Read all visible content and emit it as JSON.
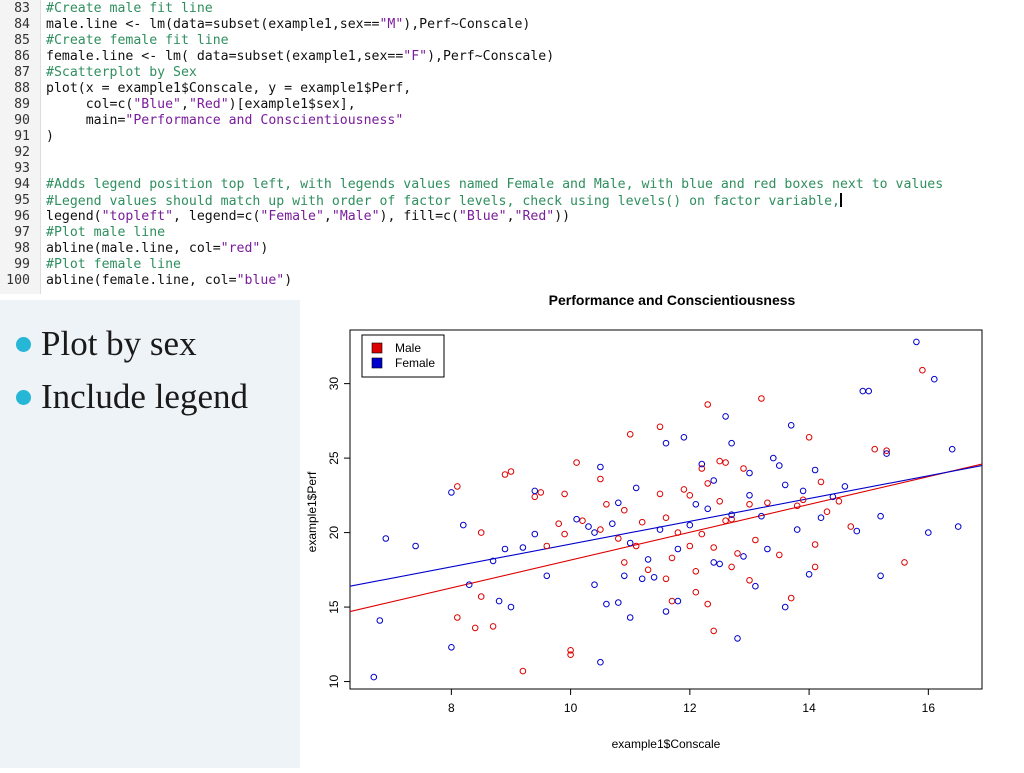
{
  "code": {
    "lines": [
      {
        "no": "83",
        "text": "#Create male fit line",
        "comment": true
      },
      {
        "no": "84",
        "text": "male.line <- lm(data=subset(example1,sex==\"M\"),Perf~Conscale)",
        "comment": false
      },
      {
        "no": "85",
        "text": "#Create female fit line",
        "comment": true
      },
      {
        "no": "86",
        "text": "female.line <- lm( data=subset(example1,sex==\"F\"),Perf~Conscale)",
        "comment": false
      },
      {
        "no": "87",
        "text": "#Scatterplot by Sex",
        "comment": true
      },
      {
        "no": "88",
        "text": "plot(x = example1$Conscale, y = example1$Perf,",
        "comment": false
      },
      {
        "no": "89",
        "text": "     col=c(\"Blue\",\"Red\")[example1$sex],",
        "comment": false
      },
      {
        "no": "90",
        "text": "     main=\"Performance and Conscientiousness\"",
        "comment": false
      },
      {
        "no": "91",
        "text": ")",
        "comment": false
      },
      {
        "no": "92",
        "text": "",
        "comment": false
      },
      {
        "no": "93",
        "text": "",
        "comment": false
      },
      {
        "no": "94",
        "text": "#Adds legend position top left, with legends values named Female and Male, with blue and red boxes next to values",
        "comment": true
      },
      {
        "no": "95",
        "text": "#Legend values should match up with order of factor levels, check using levels() on factor variable,",
        "comment": true,
        "cursor": true
      },
      {
        "no": "96",
        "text": "legend(\"topleft\", legend=c(\"Female\",\"Male\"), fill=c(\"Blue\",\"Red\"))",
        "comment": false
      },
      {
        "no": "97",
        "text": "#Plot male line",
        "comment": true
      },
      {
        "no": "98",
        "text": "abline(male.line, col=\"red\")",
        "comment": false
      },
      {
        "no": "99",
        "text": "#Plot female line",
        "comment": true
      },
      {
        "no": "100",
        "text": "abline(female.line, col=\"blue\")",
        "comment": false
      }
    ]
  },
  "bullets": [
    {
      "label": "Plot by sex"
    },
    {
      "label": "Include legend"
    }
  ],
  "chart_data": {
    "type": "scatter",
    "title": "Performance and Conscientiousness",
    "xlabel": "example1$Conscale",
    "ylabel": "example1$Perf",
    "xlim": [
      6.3,
      16.9
    ],
    "ylim": [
      9.5,
      33.6
    ],
    "xticks": [
      8,
      10,
      12,
      14,
      16
    ],
    "yticks": [
      10,
      15,
      20,
      25,
      30
    ],
    "grid": false,
    "legend": {
      "position": "top-left",
      "entries": [
        {
          "name": "Male",
          "color": "#dd0000"
        },
        {
          "name": "Female",
          "color": "#0000cc"
        }
      ]
    },
    "series": [
      {
        "name": "Male",
        "color": "#dd0000",
        "fit_line": {
          "x": [
            6.3,
            16.9
          ],
          "y": [
            14.7,
            24.6
          ]
        },
        "points": [
          [
            8.1,
            23.1
          ],
          [
            8.1,
            14.3
          ],
          [
            8.4,
            13.6
          ],
          [
            8.5,
            20.0
          ],
          [
            8.5,
            15.7
          ],
          [
            8.7,
            13.7
          ],
          [
            8.9,
            23.9
          ],
          [
            9.0,
            24.1
          ],
          [
            9.2,
            10.7
          ],
          [
            9.4,
            22.4
          ],
          [
            9.5,
            22.7
          ],
          [
            9.6,
            19.1
          ],
          [
            9.8,
            20.6
          ],
          [
            9.9,
            19.9
          ],
          [
            9.9,
            22.6
          ],
          [
            10.0,
            12.1
          ],
          [
            10.0,
            11.8
          ],
          [
            10.1,
            24.7
          ],
          [
            10.2,
            20.8
          ],
          [
            10.5,
            20.2
          ],
          [
            10.5,
            23.6
          ],
          [
            10.6,
            21.9
          ],
          [
            10.8,
            19.6
          ],
          [
            10.9,
            18.0
          ],
          [
            10.9,
            21.5
          ],
          [
            11.0,
            26.6
          ],
          [
            11.1,
            19.1
          ],
          [
            11.2,
            20.7
          ],
          [
            11.3,
            17.5
          ],
          [
            11.5,
            27.1
          ],
          [
            11.5,
            22.6
          ],
          [
            11.6,
            21.0
          ],
          [
            11.6,
            16.9
          ],
          [
            11.7,
            15.4
          ],
          [
            11.7,
            18.3
          ],
          [
            11.8,
            20.0
          ],
          [
            11.9,
            22.9
          ],
          [
            12.0,
            22.5
          ],
          [
            12.0,
            19.1
          ],
          [
            12.1,
            17.4
          ],
          [
            12.1,
            16.0
          ],
          [
            12.2,
            24.3
          ],
          [
            12.2,
            19.9
          ],
          [
            12.3,
            28.6
          ],
          [
            12.3,
            23.3
          ],
          [
            12.3,
            15.2
          ],
          [
            12.4,
            19.0
          ],
          [
            12.4,
            13.4
          ],
          [
            12.5,
            22.1
          ],
          [
            12.5,
            24.8
          ],
          [
            12.6,
            24.7
          ],
          [
            12.6,
            20.8
          ],
          [
            12.7,
            17.7
          ],
          [
            12.7,
            20.9
          ],
          [
            12.8,
            18.6
          ],
          [
            12.9,
            24.3
          ],
          [
            13.0,
            21.9
          ],
          [
            13.0,
            16.8
          ],
          [
            13.1,
            19.5
          ],
          [
            13.2,
            29.0
          ],
          [
            13.3,
            22.0
          ],
          [
            13.5,
            18.5
          ],
          [
            13.7,
            15.6
          ],
          [
            13.8,
            21.8
          ],
          [
            13.9,
            22.2
          ],
          [
            14.0,
            26.4
          ],
          [
            14.1,
            19.2
          ],
          [
            14.1,
            17.7
          ],
          [
            14.2,
            23.4
          ],
          [
            14.3,
            21.4
          ],
          [
            14.5,
            22.1
          ],
          [
            14.7,
            20.4
          ],
          [
            15.1,
            25.6
          ],
          [
            15.3,
            25.5
          ],
          [
            15.6,
            18.0
          ],
          [
            15.9,
            30.9
          ]
        ]
      },
      {
        "name": "Female",
        "color": "#0000cc",
        "fit_line": {
          "x": [
            6.3,
            16.9
          ],
          "y": [
            16.4,
            24.5
          ]
        },
        "points": [
          [
            6.7,
            10.3
          ],
          [
            6.8,
            14.1
          ],
          [
            6.9,
            19.6
          ],
          [
            7.4,
            19.1
          ],
          [
            8.0,
            12.3
          ],
          [
            8.0,
            22.7
          ],
          [
            8.2,
            20.5
          ],
          [
            8.3,
            16.5
          ],
          [
            8.7,
            18.1
          ],
          [
            8.8,
            15.4
          ],
          [
            8.9,
            18.9
          ],
          [
            9.0,
            15.0
          ],
          [
            9.2,
            19.0
          ],
          [
            9.4,
            22.8
          ],
          [
            9.4,
            19.9
          ],
          [
            9.6,
            17.1
          ],
          [
            10.1,
            20.9
          ],
          [
            10.3,
            20.4
          ],
          [
            10.4,
            16.5
          ],
          [
            10.4,
            20.0
          ],
          [
            10.5,
            24.4
          ],
          [
            10.5,
            11.3
          ],
          [
            10.6,
            15.2
          ],
          [
            10.7,
            20.6
          ],
          [
            10.8,
            15.3
          ],
          [
            10.8,
            22.0
          ],
          [
            10.9,
            17.1
          ],
          [
            11.0,
            14.3
          ],
          [
            11.0,
            19.3
          ],
          [
            11.1,
            23.0
          ],
          [
            11.2,
            16.9
          ],
          [
            11.3,
            18.2
          ],
          [
            11.4,
            17.0
          ],
          [
            11.5,
            20.2
          ],
          [
            11.6,
            26.0
          ],
          [
            11.6,
            14.7
          ],
          [
            11.8,
            18.9
          ],
          [
            11.8,
            15.4
          ],
          [
            11.9,
            26.4
          ],
          [
            12.0,
            20.5
          ],
          [
            12.1,
            21.9
          ],
          [
            12.2,
            24.6
          ],
          [
            12.3,
            21.6
          ],
          [
            12.4,
            23.5
          ],
          [
            12.4,
            18.0
          ],
          [
            12.5,
            17.9
          ],
          [
            12.6,
            27.8
          ],
          [
            12.7,
            26.0
          ],
          [
            12.7,
            21.2
          ],
          [
            12.8,
            12.9
          ],
          [
            12.9,
            18.4
          ],
          [
            13.0,
            24.0
          ],
          [
            13.0,
            22.5
          ],
          [
            13.1,
            16.4
          ],
          [
            13.2,
            21.1
          ],
          [
            13.3,
            18.9
          ],
          [
            13.4,
            25.0
          ],
          [
            13.5,
            24.5
          ],
          [
            13.6,
            15.0
          ],
          [
            13.6,
            23.2
          ],
          [
            13.7,
            27.2
          ],
          [
            13.8,
            20.2
          ],
          [
            13.9,
            22.8
          ],
          [
            14.0,
            17.2
          ],
          [
            14.1,
            24.2
          ],
          [
            14.2,
            21.0
          ],
          [
            14.4,
            22.4
          ],
          [
            14.6,
            23.1
          ],
          [
            14.8,
            20.1
          ],
          [
            14.9,
            29.5
          ],
          [
            15.0,
            29.5
          ],
          [
            15.2,
            21.1
          ],
          [
            15.2,
            17.1
          ],
          [
            15.3,
            25.3
          ],
          [
            15.8,
            32.8
          ],
          [
            16.0,
            20.0
          ],
          [
            16.1,
            30.3
          ],
          [
            16.4,
            25.6
          ],
          [
            16.5,
            20.4
          ]
        ]
      }
    ]
  }
}
